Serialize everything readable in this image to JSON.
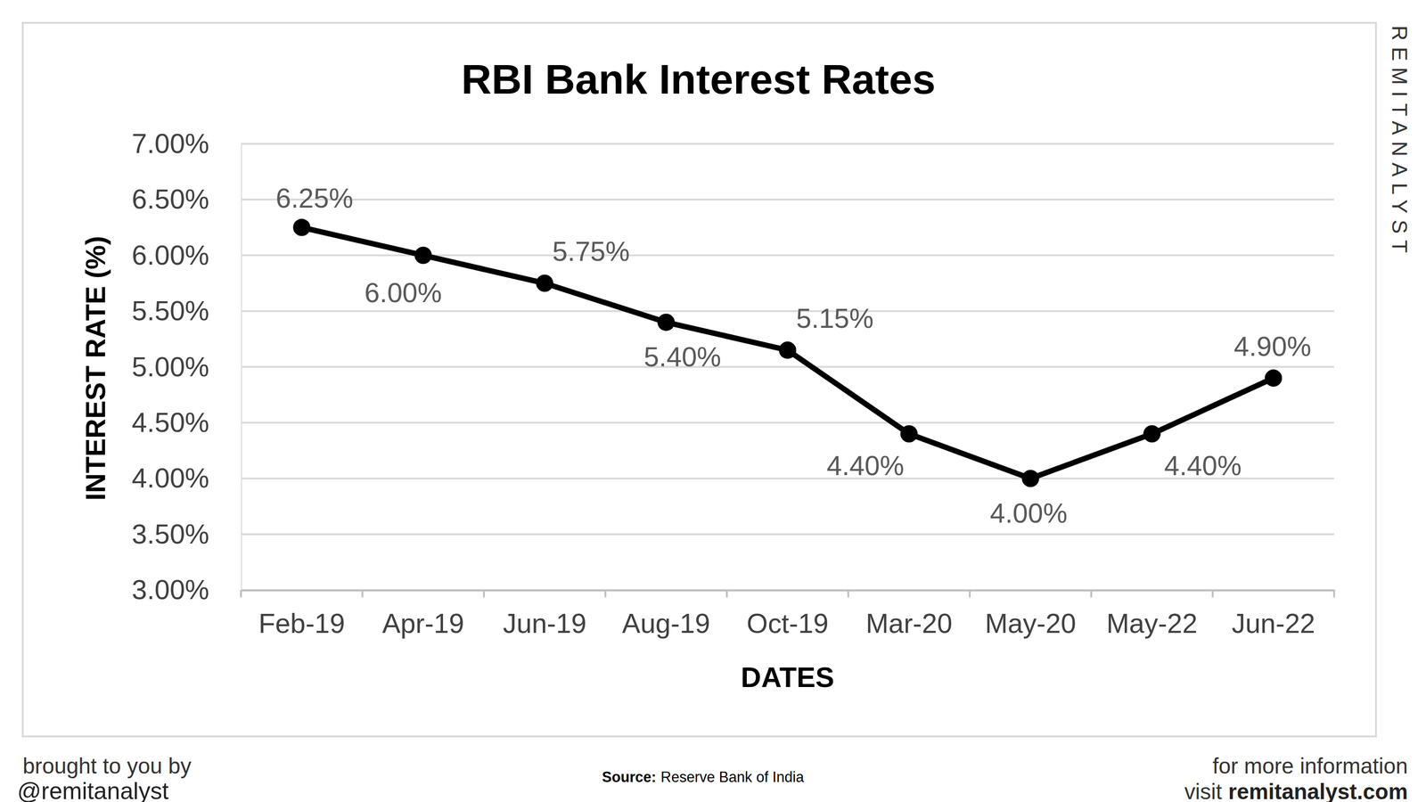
{
  "chart_data": {
    "type": "line",
    "title": "RBI Bank Interest Rates",
    "x_label": "DATES",
    "y_label": "INTEREST RATE (%)",
    "categories": [
      "Feb-19",
      "Apr-19",
      "Jun-19",
      "Aug-19",
      "Oct-19",
      "Mar-20",
      "May-20",
      "May-22",
      "Jun-22"
    ],
    "values": [
      6.25,
      6.0,
      5.75,
      5.4,
      5.15,
      4.4,
      4.0,
      4.4,
      4.9
    ],
    "value_labels": [
      "6.25%",
      "6.00%",
      "5.75%",
      "5.40%",
      "5.15%",
      "4.40%",
      "4.00%",
      "4.40%",
      "4.90%"
    ],
    "ylim": [
      3,
      7
    ],
    "yticks": [
      {
        "value": 3,
        "label": "3.00%"
      },
      {
        "value": 3.5,
        "label": "3.50%"
      },
      {
        "value": 4,
        "label": "4.00%"
      },
      {
        "value": 4.5,
        "label": "4.50%"
      },
      {
        "value": 5,
        "label": "5.00%"
      },
      {
        "value": 5.5,
        "label": "5.50%"
      },
      {
        "value": 6,
        "label": "6.00%"
      },
      {
        "value": 6.5,
        "label": "6.50%"
      },
      {
        "value": 7,
        "label": "7.00%"
      }
    ],
    "grid": true,
    "data_labels": true,
    "color": "#000000",
    "marker": "circle",
    "line_style": "solid"
  },
  "watermark": "REMITANALYST",
  "footer": {
    "brought_by": "brought to you by",
    "handle": "@remitanalyst",
    "source_label": "Source:",
    "source": "Reserve Bank of India",
    "info": "for more information",
    "visit": "visit",
    "site": "remitanalyst.com"
  }
}
